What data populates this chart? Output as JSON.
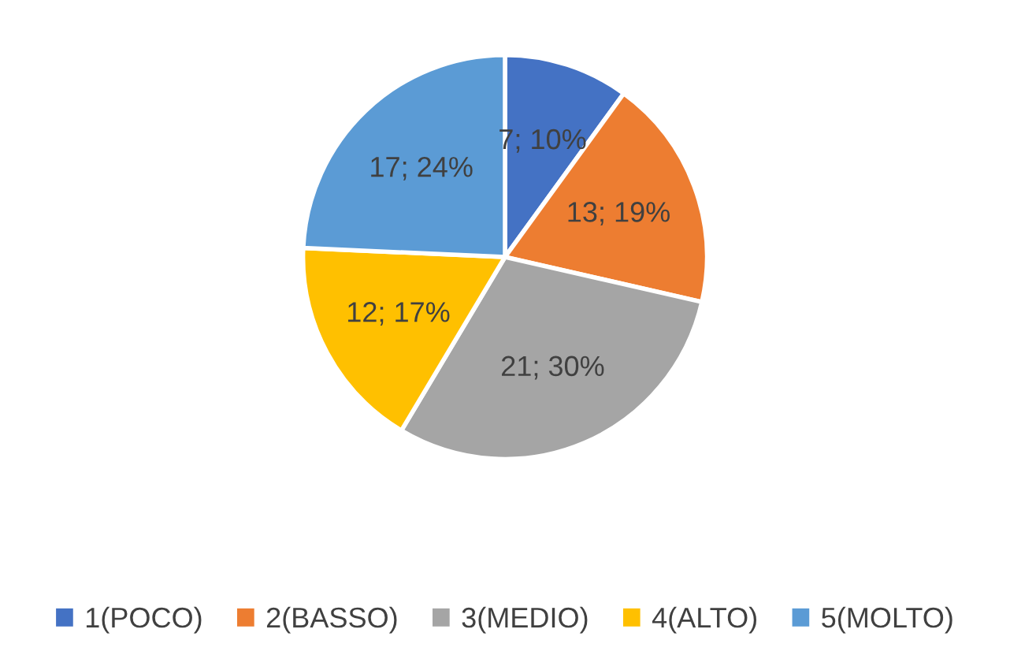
{
  "chart_data": {
    "type": "pie",
    "categories": [
      "1(POCO)",
      "2(BASSO)",
      "3(MEDIO)",
      "4(ALTO)",
      "5(MOLTO)"
    ],
    "values": [
      7,
      13,
      21,
      12,
      17
    ],
    "colors": [
      "#4472c4",
      "#ed7d31",
      "#a5a5a5",
      "#ffc000",
      "#5b9bd5"
    ],
    "value_labels": [
      "7; 10%",
      "13; 19%",
      "21; 30%",
      "12; 17%",
      "17; 24%"
    ],
    "legend": "bottom"
  }
}
